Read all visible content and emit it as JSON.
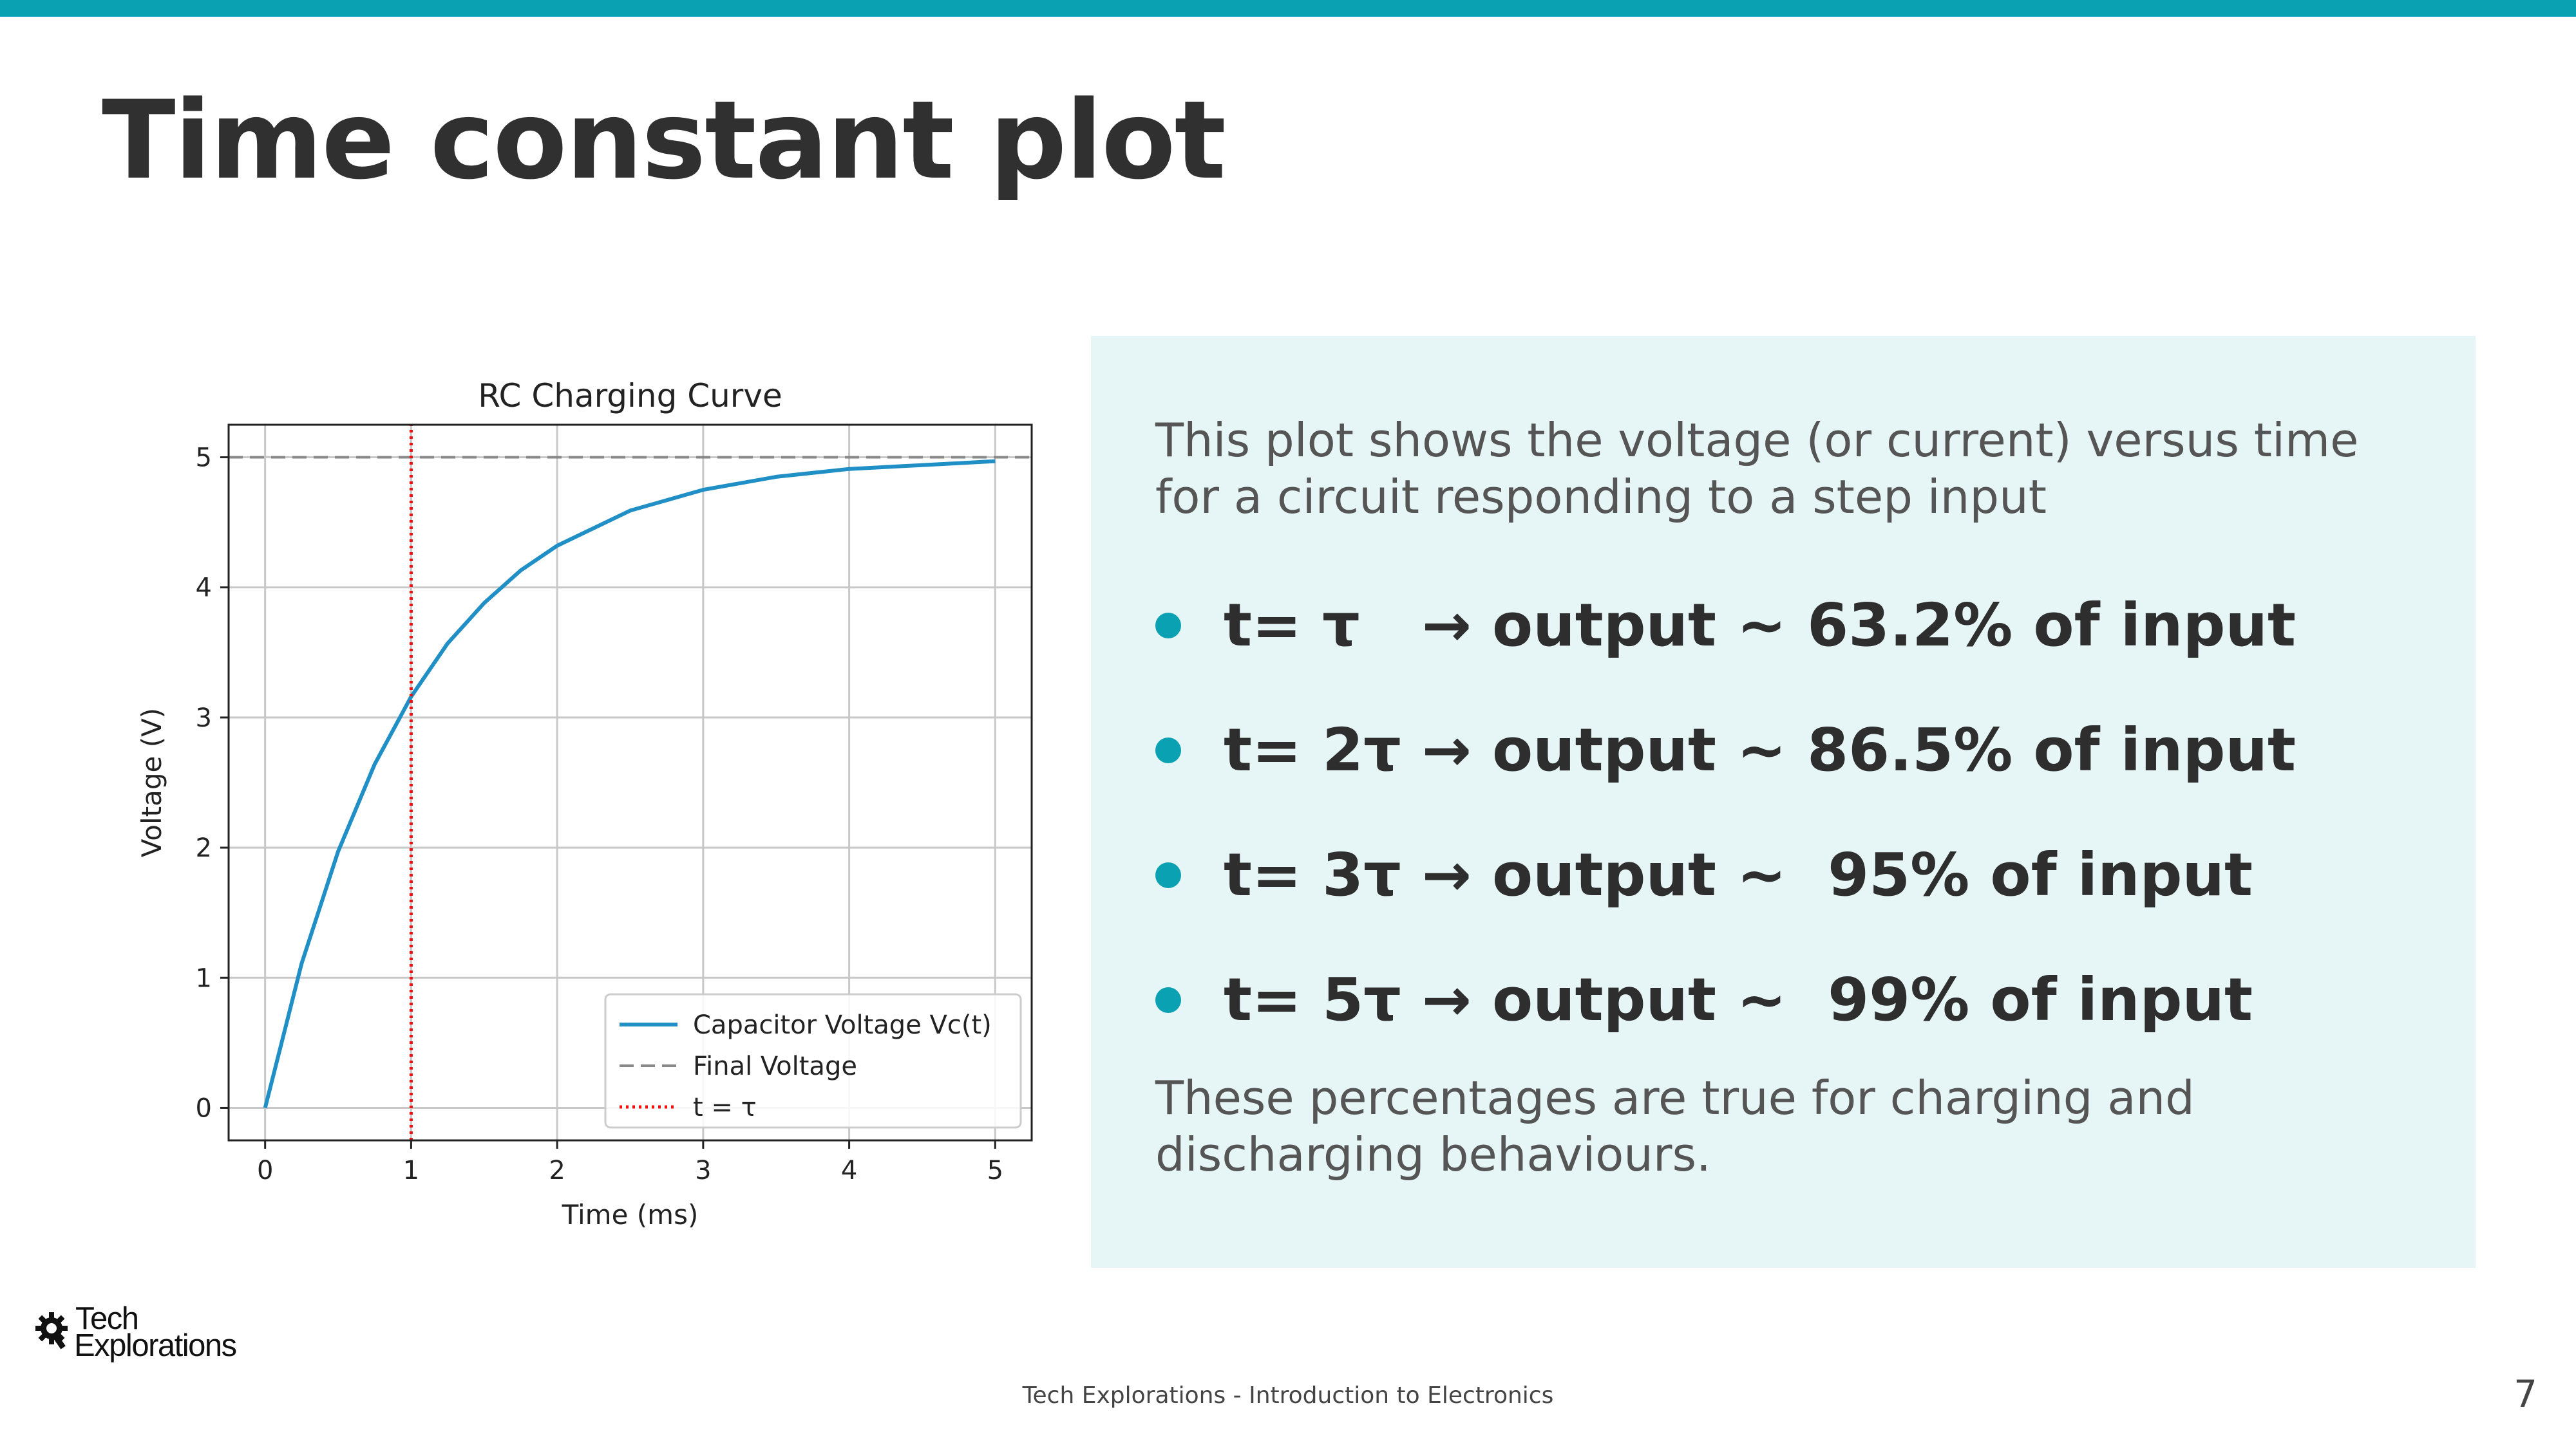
{
  "slide": {
    "title": "Time constant plot",
    "page_number": "7",
    "footer": "Tech Explorations - Introduction to Electronics",
    "logo": {
      "line1": "Tech",
      "line2": "Explorations"
    },
    "accent_color": "#0aa1b3",
    "panel_color": "#e6f5f5"
  },
  "panel": {
    "intro": "This plot shows the voltage (or current) versus time for a circuit responding to a step input",
    "bullets": [
      "t= τ   → output ~ 63.2% of input",
      "t= 2τ → output ~ 86.5% of input",
      "t= 3τ → output ~  95% of input",
      "t= 5τ → output ~  99% of input"
    ],
    "outro": "These percentages are true for charging and discharging behaviours."
  },
  "chart_data": {
    "type": "line",
    "title": "RC Charging Curve",
    "xlabel": "Time (ms)",
    "ylabel": "Voltage (V)",
    "xlim": [
      -0.25,
      5.25
    ],
    "ylim": [
      -0.25,
      5.25
    ],
    "xticks": [
      0,
      1,
      2,
      3,
      4,
      5
    ],
    "yticks": [
      0,
      1,
      2,
      3,
      4,
      5
    ],
    "grid": true,
    "legend_position": "lower-right",
    "series": [
      {
        "name": "Capacitor Voltage Vc(t)",
        "style": "solid",
        "color": "#1f8fc6",
        "x": [
          0,
          0.25,
          0.5,
          0.75,
          1.0,
          1.25,
          1.5,
          1.75,
          2.0,
          2.5,
          3.0,
          3.5,
          4.0,
          4.5,
          5.0
        ],
        "y": [
          0,
          1.11,
          1.97,
          2.64,
          3.16,
          3.57,
          3.88,
          4.13,
          4.32,
          4.59,
          4.75,
          4.85,
          4.91,
          4.94,
          4.97
        ]
      },
      {
        "name": "Final Voltage",
        "style": "dashed",
        "color": "#888888",
        "x": [
          -0.25,
          5.25
        ],
        "y": [
          5,
          5
        ]
      },
      {
        "name": "t = τ",
        "style": "dotted",
        "color": "#ee1111",
        "x": [
          1,
          1
        ],
        "y": [
          -0.25,
          5.25
        ]
      }
    ]
  }
}
